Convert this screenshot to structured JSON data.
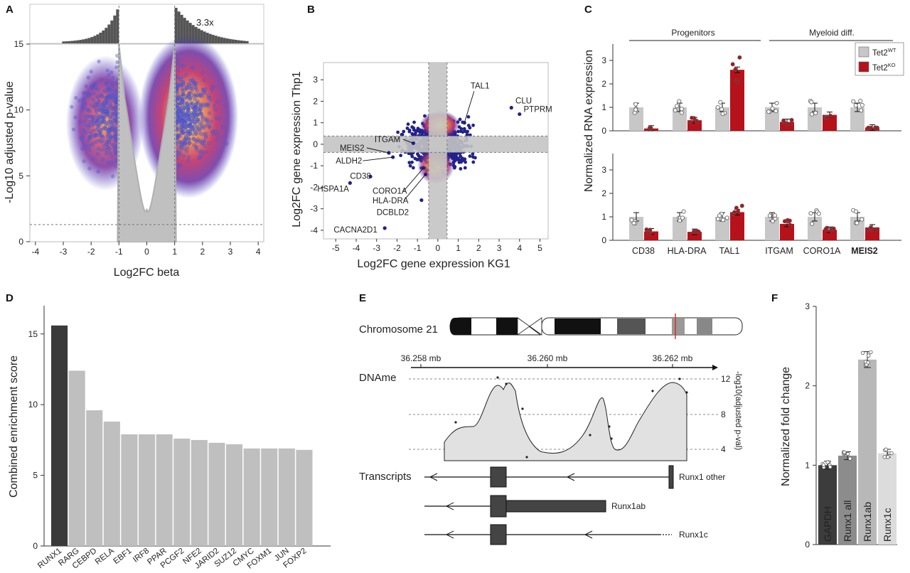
{
  "panels": [
    {
      "id": "A",
      "label": "A"
    },
    {
      "id": "B",
      "label": "B"
    },
    {
      "id": "C",
      "label": "C"
    },
    {
      "id": "D",
      "label": "D"
    },
    {
      "id": "E",
      "label": "E"
    },
    {
      "id": "F",
      "label": "F"
    }
  ],
  "chart_data": [
    {
      "panel": "A",
      "type": "scatter",
      "title": "",
      "xlabel": "Log2FC beta",
      "ylabel": "-Log10 adjusted p-value",
      "xlim": [
        -4.2,
        4.2
      ],
      "ylim": [
        0,
        15
      ],
      "xticks": [
        "-4",
        "-3",
        "-2",
        "-1",
        "0",
        "1",
        "2",
        "3",
        "4"
      ],
      "yticks": [
        "0",
        "5",
        "10",
        "15"
      ],
      "annotations": [
        "3.3x"
      ],
      "thresholds": {
        "x": [
          -1,
          1
        ],
        "y": 1.3
      }
    },
    {
      "panel": "B",
      "type": "scatter",
      "xlabel": "Log2FC gene expression KG1",
      "ylabel": "Log2FC gene expression Thp1",
      "xlim": [
        -5.6,
        5.4
      ],
      "ylim": [
        -4.4,
        3.8
      ],
      "xticks": [
        "-5",
        "-4",
        "-3",
        "-2",
        "-1",
        "0",
        "1",
        "2",
        "3",
        "4",
        "5"
      ],
      "yticks": [
        "-4",
        "-3",
        "-2",
        "-1",
        "0",
        "1",
        "2",
        "3"
      ],
      "gene_labels": [
        {
          "name": "TAL1",
          "x": 1.3,
          "y": 1.0
        },
        {
          "name": "CLU",
          "x": 3.6,
          "y": 1.7
        },
        {
          "name": "PTPRM",
          "x": 4.0,
          "y": 1.4
        },
        {
          "name": "ITGAM",
          "x": -1.2,
          "y": 0.05
        },
        {
          "name": "MEIS2",
          "x": -2.4,
          "y": -0.4
        },
        {
          "name": "ALDH2",
          "x": -2.2,
          "y": -0.6
        },
        {
          "name": "CD38",
          "x": -3.3,
          "y": -1.5
        },
        {
          "name": "HSPA1A",
          "x": -4.3,
          "y": -1.8
        },
        {
          "name": "CORO1A",
          "x": -0.7,
          "y": -1.1
        },
        {
          "name": "HLA-DRA",
          "x": -0.6,
          "y": -1.4
        },
        {
          "name": "DCBLD2",
          "x": -0.8,
          "y": -2.6
        },
        {
          "name": "CACNA2D1",
          "x": -2.6,
          "y": -3.9
        }
      ]
    },
    {
      "panel": "C",
      "type": "bar",
      "ylabel": "Normalized RNA expression",
      "categories": [
        "CD38",
        "HLA-DRA",
        "TAL1",
        "ITGAM",
        "CORO1A",
        "MEIS2"
      ],
      "groups": [
        "Progenitors",
        "Myeloid diff."
      ],
      "legend": [
        {
          "name": "Tet2",
          "sup": "WT"
        },
        {
          "name": "Tet2",
          "sup": "KO"
        }
      ],
      "ylim": [
        0,
        3.7
      ],
      "yticks": [
        "0",
        "1",
        "2",
        "3"
      ],
      "top": {
        "wt": [
          1.0,
          1.0,
          1.0,
          1.0,
          1.0,
          1.0
        ],
        "ko": [
          0.1,
          0.45,
          2.6,
          0.38,
          0.68,
          0.14
        ]
      },
      "bottom": {
        "wt": [
          1.0,
          1.0,
          1.0,
          1.0,
          1.0,
          1.0
        ],
        "ko": [
          0.38,
          0.36,
          1.2,
          0.7,
          0.45,
          0.55
        ]
      }
    },
    {
      "panel": "D",
      "type": "bar",
      "ylabel": "Combined enrichment score",
      "categories": [
        "RUNX1",
        "RARG",
        "CEBPD",
        "RELA",
        "EBF1",
        "IRF8",
        "PPAR",
        "PCGF2",
        "NFE2",
        "JARID2",
        "SUZ12",
        "CMYC",
        "FOXM1",
        "JUN",
        "FOXP2"
      ],
      "values": [
        15.6,
        12.4,
        9.6,
        8.8,
        7.9,
        7.9,
        7.9,
        7.6,
        7.5,
        7.3,
        7.2,
        6.9,
        6.9,
        6.9,
        6.8
      ],
      "ylim": [
        0,
        17
      ],
      "yticks": [
        "0",
        "5",
        "10",
        "15"
      ]
    },
    {
      "panel": "E",
      "type": "area",
      "chromosome": "Chromosome 21",
      "positions": [
        "36.258 mb",
        "36.260 mb",
        "36.262 mb"
      ],
      "track_label": "DNAme",
      "right_axis_label": "-log10(adjusted p-val)",
      "yticks": [
        "4",
        "8",
        "12"
      ],
      "transcripts_label": "Transcripts",
      "transcripts": [
        "Runx1 other",
        "Runx1ab",
        "Runx1c"
      ]
    },
    {
      "panel": "F",
      "type": "bar",
      "ylabel": "Normalized fold change",
      "categories": [
        "GAPDH",
        "Runx1 all",
        "Runx1ab",
        "Runx1c"
      ],
      "values": [
        1.0,
        1.12,
        2.33,
        1.15
      ],
      "ylim": [
        0,
        3
      ],
      "yticks": [
        "0",
        "1",
        "2",
        "3"
      ]
    }
  ]
}
